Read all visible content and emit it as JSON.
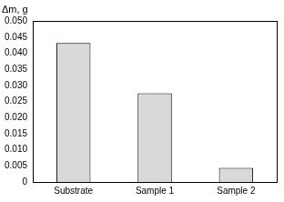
{
  "chart_data": {
    "type": "bar",
    "y_label": "Δm, g",
    "categories": [
      "Substrate",
      "Sample 1",
      "Sample 2"
    ],
    "values": [
      0.0432,
      0.0276,
      0.0044
    ],
    "color": "#d9d9d9",
    "ylim": [
      0,
      0.05
    ],
    "yticks": [
      0,
      0.005,
      {
        "value": 0.01,
        "label": "0.010"
      },
      0.015,
      {
        "value": 0.02,
        "label": "0.020"
      },
      0.025,
      {
        "value": 0.03,
        "label": "0.030"
      },
      0.035,
      {
        "value": 0.04,
        "label": "0.040"
      },
      0.045,
      {
        "value": 0.05,
        "label": "0.050"
      }
    ],
    "grid": false
  }
}
